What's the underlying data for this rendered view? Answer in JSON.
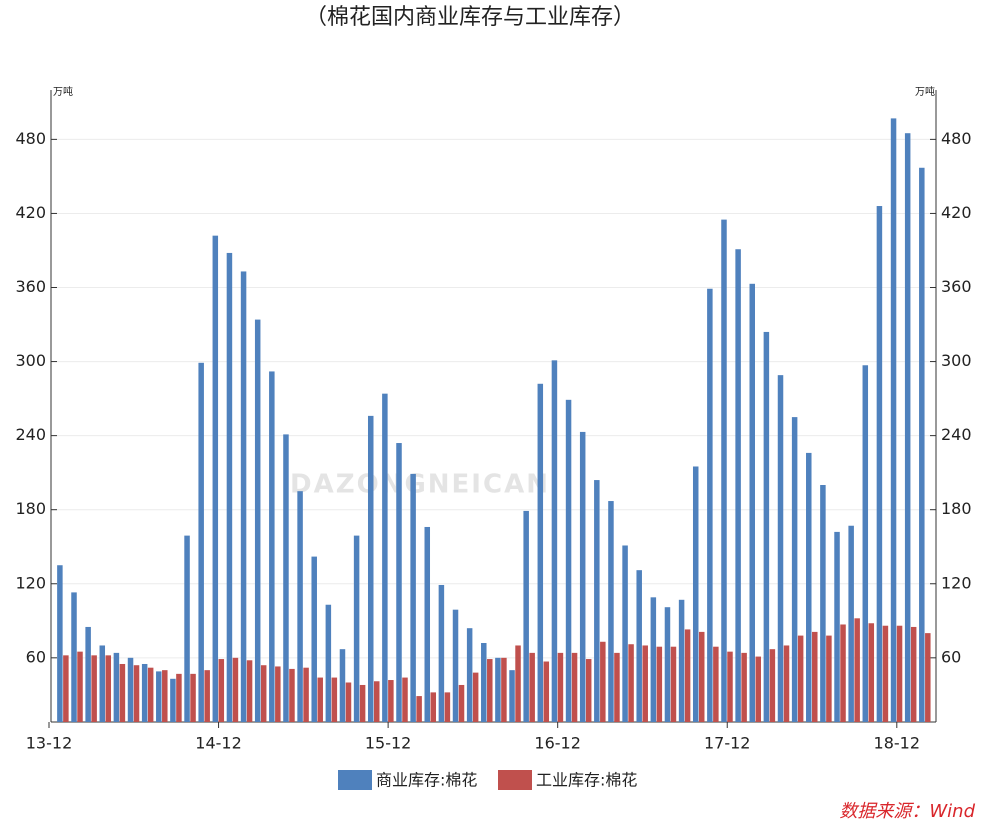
{
  "chart_data": {
    "type": "bar",
    "title": "（棉花国内商业库存与工业库存）",
    "y_unit": "万吨",
    "y2_unit": "万吨",
    "source": "数据来源：Wind",
    "watermark": "DAZONGNEICAN",
    "categories": [
      "13-12",
      null,
      null,
      null,
      null,
      null,
      null,
      null,
      null,
      null,
      null,
      null,
      "14-12",
      null,
      null,
      null,
      null,
      null,
      null,
      null,
      null,
      null,
      null,
      null,
      "15-12",
      null,
      null,
      null,
      null,
      null,
      null,
      null,
      null,
      null,
      null,
      null,
      "16-12",
      null,
      null,
      null,
      null,
      null,
      null,
      null,
      null,
      null,
      null,
      null,
      "17-12",
      null,
      null,
      null,
      null,
      null,
      null,
      null,
      null,
      null,
      null,
      null,
      "18-12",
      null,
      null
    ],
    "series": [
      {
        "name": "商业库存:棉花",
        "color": "#4f81bd",
        "values": [
          null,
          135,
          113,
          85,
          70,
          64,
          60,
          55,
          49,
          43,
          159,
          299,
          402,
          388,
          373,
          334,
          292,
          241,
          195,
          142,
          103,
          67,
          159,
          256,
          274,
          234,
          209,
          166,
          119,
          99,
          84,
          72,
          60,
          50,
          179,
          282,
          301,
          269,
          243,
          204,
          187,
          151,
          131,
          109,
          101,
          107,
          215,
          359,
          415,
          391,
          363,
          324,
          289,
          255,
          226,
          200,
          162,
          167,
          297,
          426,
          497,
          485,
          457
        ]
      },
      {
        "name": "工业库存:棉花",
        "color": "#c0504d",
        "values": [
          null,
          62,
          65,
          62,
          62,
          55,
          54,
          52,
          50,
          47,
          47,
          50,
          59,
          60,
          58,
          54,
          53,
          51,
          52,
          44,
          44,
          40,
          38,
          41,
          42,
          44,
          29,
          32,
          32,
          38,
          48,
          59,
          60,
          70,
          64,
          57,
          64,
          64,
          59,
          73,
          64,
          71,
          70,
          69,
          69,
          83,
          81,
          69,
          65,
          64,
          61,
          67,
          70,
          78,
          81,
          78,
          87,
          92,
          88,
          86,
          86,
          85,
          80
        ]
      }
    ],
    "ylim": [
      8,
      520
    ],
    "yticks": [
      60,
      120,
      180,
      240,
      300,
      360,
      420,
      480
    ],
    "y2lim": [
      8,
      520
    ],
    "y2ticks": [
      60,
      120,
      180,
      240,
      300,
      360,
      420,
      480
    ],
    "grid": true,
    "legend": "bottom"
  }
}
